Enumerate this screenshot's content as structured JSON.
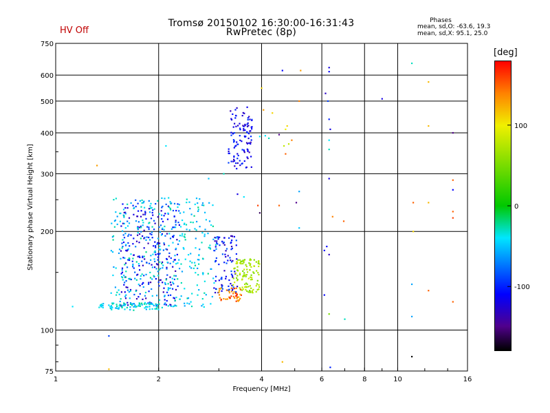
{
  "header": {
    "status": "HV Off",
    "title_line1": "Tromsø 20150102 16:30:00-16:31:43",
    "title_line2": "RwPretec (8p)",
    "phase_heading": "Phases",
    "phase_o": "mean, sd,O: -63.6, 19.3",
    "phase_x": "mean, sd,X:  95.1, 25.0"
  },
  "colorbar": {
    "unit": "[deg]",
    "ticks": [
      "100",
      "0",
      "-100"
    ],
    "tick_values": [
      100,
      0,
      -100
    ],
    "range": [
      -180,
      180
    ]
  },
  "chart_data": {
    "type": "scatter",
    "xlabel": "Frequency [MHz]",
    "ylabel": "Stationary phase Virtual Height [km]",
    "xscale": "log",
    "yscale": "log",
    "xlim": [
      1,
      16
    ],
    "ylim": [
      75,
      750
    ],
    "xticks": [
      1,
      2,
      4,
      6,
      8,
      10,
      16
    ],
    "xtick_labels": [
      "1",
      "2",
      "4",
      "6",
      "8",
      "10",
      "16"
    ],
    "yticks": [
      75,
      100,
      200,
      300,
      400,
      500,
      600,
      750
    ],
    "ytick_labels": [
      "75",
      "100",
      "200",
      "300",
      "400",
      "500",
      "600",
      "750"
    ],
    "grid": true,
    "color_by": "phase [deg]",
    "points": [
      {
        "freq": 1.32,
        "height": 318,
        "phase": 130
      },
      {
        "freq": 1.12,
        "height": 118,
        "phase": -40
      },
      {
        "freq": 1.43,
        "height": 96,
        "phase": -90
      },
      {
        "freq": 1.43,
        "height": 76,
        "phase": 120
      },
      {
        "freq": 4.6,
        "height": 80,
        "phase": 120
      },
      {
        "freq": 6.35,
        "height": 77,
        "phase": -100
      },
      {
        "freq": 7.0,
        "height": 108,
        "phase": -30
      },
      {
        "freq": 6.3,
        "height": 112,
        "phase": 50
      },
      {
        "freq": 6.1,
        "height": 128,
        "phase": -110
      },
      {
        "freq": 2.1,
        "height": 365,
        "phase": -40
      },
      {
        "freq": 2.8,
        "height": 290,
        "phase": -50
      },
      {
        "freq": 3.1,
        "height": 300,
        "phase": -30
      },
      {
        "freq": 4.6,
        "height": 620,
        "phase": -110
      },
      {
        "freq": 5.2,
        "height": 620,
        "phase": 130
      },
      {
        "freq": 6.3,
        "height": 633,
        "phase": -120
      },
      {
        "freq": 6.3,
        "height": 615,
        "phase": -110
      },
      {
        "freq": 4.0,
        "height": 548,
        "phase": 110
      },
      {
        "freq": 5.15,
        "height": 500,
        "phase": 140
      },
      {
        "freq": 6.15,
        "height": 528,
        "phase": -130
      },
      {
        "freq": 6.25,
        "height": 500,
        "phase": -90
      },
      {
        "freq": 6.3,
        "height": 440,
        "phase": -100
      },
      {
        "freq": 6.35,
        "height": 410,
        "phase": -120
      },
      {
        "freq": 6.3,
        "height": 380,
        "phase": -40
      },
      {
        "freq": 6.3,
        "height": 356,
        "phase": -30
      },
      {
        "freq": 6.3,
        "height": 290,
        "phase": -120
      },
      {
        "freq": 6.45,
        "height": 222,
        "phase": 140
      },
      {
        "freq": 6.95,
        "height": 215,
        "phase": 150
      },
      {
        "freq": 6.2,
        "height": 180,
        "phase": -110
      },
      {
        "freq": 6.3,
        "height": 170,
        "phase": -130
      },
      {
        "freq": 9.0,
        "height": 508,
        "phase": -120
      },
      {
        "freq": 11.0,
        "height": 652,
        "phase": -30
      },
      {
        "freq": 12.3,
        "height": 572,
        "phase": 120
      },
      {
        "freq": 12.3,
        "height": 420,
        "phase": 120
      },
      {
        "freq": 14.5,
        "height": 400,
        "phase": -150
      },
      {
        "freq": 14.5,
        "height": 287,
        "phase": 150
      },
      {
        "freq": 14.5,
        "height": 268,
        "phase": -110
      },
      {
        "freq": 14.5,
        "height": 230,
        "phase": 150
      },
      {
        "freq": 14.5,
        "height": 220,
        "phase": 160
      },
      {
        "freq": 11.1,
        "height": 245,
        "phase": 150
      },
      {
        "freq": 12.3,
        "height": 245,
        "phase": 120
      },
      {
        "freq": 11.1,
        "height": 200,
        "phase": 110
      },
      {
        "freq": 11.0,
        "height": 138,
        "phase": -60
      },
      {
        "freq": 12.3,
        "height": 132,
        "phase": 150
      },
      {
        "freq": 14.5,
        "height": 122,
        "phase": 150
      },
      {
        "freq": 11.0,
        "height": 110,
        "phase": -60
      },
      {
        "freq": 11.0,
        "height": 83,
        "phase": -180
      },
      {
        "freq": 5.15,
        "height": 265,
        "phase": -60
      },
      {
        "freq": 5.15,
        "height": 205,
        "phase": -50
      },
      {
        "freq": 4.5,
        "height": 240,
        "phase": 150
      },
      {
        "freq": 3.9,
        "height": 240,
        "phase": 160
      },
      {
        "freq": 5.05,
        "height": 245,
        "phase": -150
      },
      {
        "freq": 3.95,
        "height": 228,
        "phase": -160
      },
      {
        "freq": 3.55,
        "height": 255,
        "phase": -40
      },
      {
        "freq": 3.4,
        "height": 260,
        "phase": -120
      },
      {
        "freq": 4.5,
        "height": 395,
        "phase": -150
      },
      {
        "freq": 4.7,
        "height": 345,
        "phase": 150
      },
      {
        "freq": 4.9,
        "height": 380,
        "phase": 140
      },
      {
        "freq": 4.75,
        "height": 420,
        "phase": 110
      },
      {
        "freq": 4.3,
        "height": 460,
        "phase": 110
      },
      {
        "freq": 4.05,
        "height": 470,
        "phase": 130
      },
      {
        "freq": 4.7,
        "height": 410,
        "phase": 100
      },
      {
        "freq": 4.65,
        "height": 365,
        "phase": 80
      },
      {
        "freq": 4.8,
        "height": 370,
        "phase": 80
      },
      {
        "freq": 3.95,
        "height": 390,
        "phase": -40
      },
      {
        "freq": 4.1,
        "height": 392,
        "phase": -40
      },
      {
        "freq": 4.2,
        "height": 385,
        "phase": -30
      },
      {
        "freq": 6.1,
        "height": 175,
        "phase": -110
      }
    ],
    "clusters": [
      {
        "freq": [
          3.2,
          3.75
        ],
        "height": [
          310,
          480
        ],
        "phase": [
          -140,
          -90
        ],
        "count": 110
      },
      {
        "freq": [
          1.55,
          2.3
        ],
        "height": [
          118,
          250
        ],
        "phase": [
          -140,
          -70
        ],
        "count": 260
      },
      {
        "freq": [
          1.45,
          2.95
        ],
        "height": [
          117,
          255
        ],
        "phase": [
          -65,
          -20
        ],
        "count": 330
      },
      {
        "freq": [
          2.9,
          3.4
        ],
        "height": [
          130,
          195
        ],
        "phase": [
          -140,
          -80
        ],
        "count": 90
      },
      {
        "freq": [
          1.3,
          2.0
        ],
        "height": [
          115,
          121
        ],
        "phase": [
          -60,
          -20
        ],
        "count": 80
      },
      {
        "freq": [
          3.3,
          3.95
        ],
        "height": [
          130,
          165
        ],
        "phase": [
          50,
          90
        ],
        "count": 110
      },
      {
        "freq": [
          3.0,
          3.5
        ],
        "height": [
          122,
          135
        ],
        "phase": [
          120,
          170
        ],
        "count": 45
      }
    ]
  }
}
